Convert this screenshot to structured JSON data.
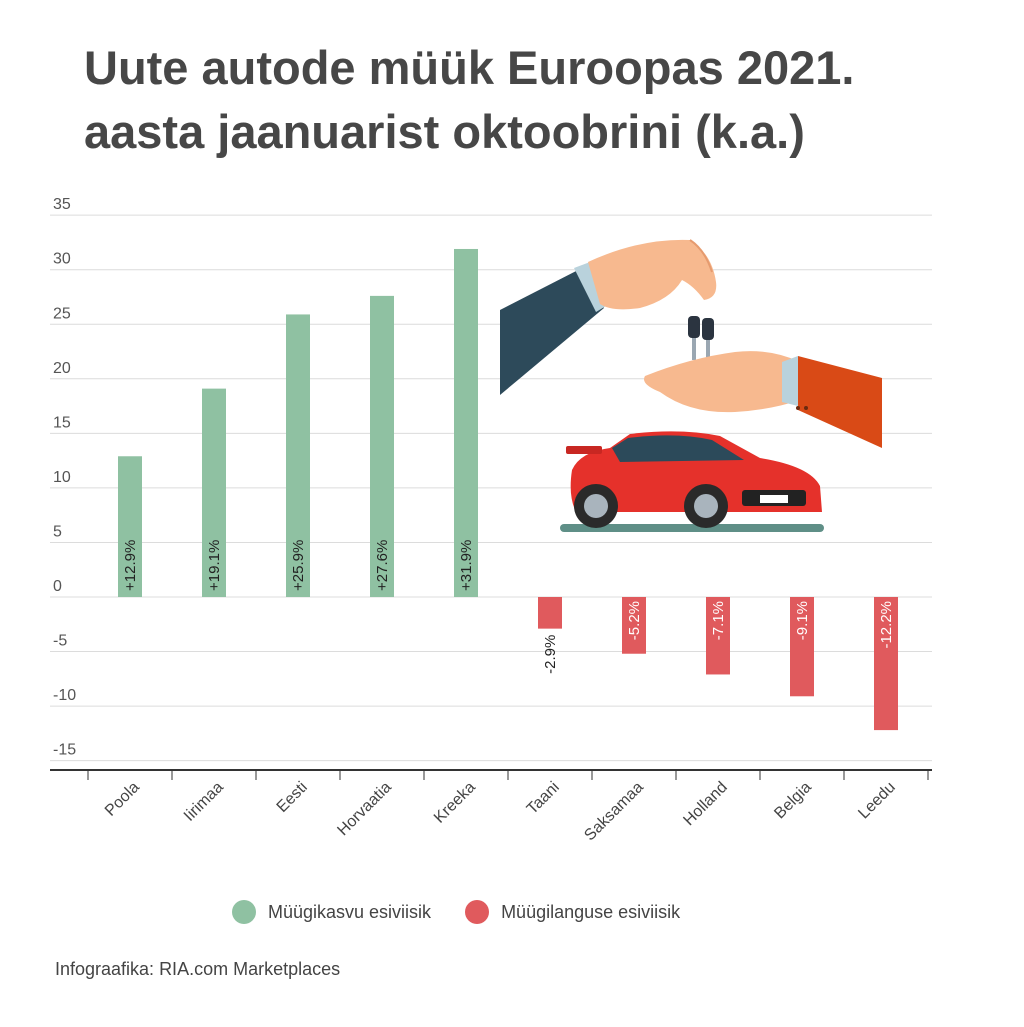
{
  "title_line1": "Uute autode müük Euroopas 2021.",
  "title_line2": "aasta jaanuarist oktoobrini (k.a.)",
  "source": "Infograafika: RIA.com Marketplaces",
  "colors": {
    "positive": "#8fc1a2",
    "negative": "#e05a5d",
    "grid": "#dcdcdc",
    "axis": "#333333"
  },
  "legend": [
    {
      "label": "Müügikasvu esiviisik",
      "color": "#8fc1a2"
    },
    {
      "label": "Müügilanguse esiviisik",
      "color": "#e05a5d"
    }
  ],
  "illustration": [
    "hand-giving-keys-icon",
    "car-keys-icon",
    "hand-receiving-keys-icon",
    "red-sports-car-icon"
  ],
  "chart_data": {
    "type": "bar",
    "title": "Uute autode müük Euroopas 2021. aasta jaanuarist oktoobrini (k.a.)",
    "categories": [
      "Poola",
      "Iirimaa",
      "Eesti",
      "Horvaatia",
      "Kreeka",
      "Taani",
      "Saksamaa",
      "Holland",
      "Belgia",
      "Leedu"
    ],
    "values": [
      12.9,
      19.1,
      25.9,
      27.6,
      31.9,
      -2.9,
      -5.2,
      -7.1,
      -9.1,
      -12.2
    ],
    "data_labels": [
      "+12.9%",
      "+19.1%",
      "+25.9%",
      "+27.6%",
      "+31.9%",
      "-2.9%",
      "-5.2%",
      "-7.1%",
      "-9.1%",
      "-12.2%"
    ],
    "yticks": [
      35,
      30,
      25,
      20,
      15,
      10,
      5,
      0,
      -5,
      -10,
      -15
    ],
    "ylim": [
      -16,
      35
    ],
    "grid": true,
    "legend_position": "bottom"
  }
}
